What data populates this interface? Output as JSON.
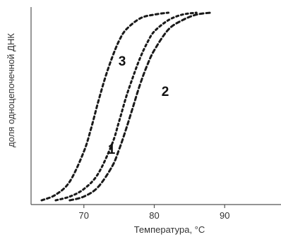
{
  "chart_data": {
    "type": "line",
    "xlabel": "Температура, °C",
    "ylabel": "доля одноцепочечной ДНК",
    "x_ticks": [
      70,
      80,
      90
    ],
    "xlim": [
      62.5,
      98
    ],
    "ylim": [
      0,
      1
    ],
    "grid": false,
    "series": [
      {
        "name": "1",
        "x": [
          66,
          68,
          70,
          72,
          74,
          75,
          76,
          77,
          78,
          79,
          80,
          82,
          84,
          86
        ],
        "y": [
          0,
          0.02,
          0.06,
          0.14,
          0.3,
          0.42,
          0.55,
          0.66,
          0.76,
          0.84,
          0.9,
          0.96,
          0.99,
          1.0
        ]
      },
      {
        "name": "2",
        "x": [
          68,
          70,
          72,
          74,
          75,
          76,
          77,
          78,
          79,
          80,
          82,
          84,
          86,
          88
        ],
        "y": [
          0,
          0.02,
          0.07,
          0.18,
          0.27,
          0.38,
          0.5,
          0.62,
          0.72,
          0.8,
          0.91,
          0.96,
          0.99,
          1.0
        ]
      },
      {
        "name": "3",
        "x": [
          64,
          66,
          68,
          70,
          71,
          72,
          73,
          74,
          75,
          76,
          78,
          80,
          82
        ],
        "y": [
          0,
          0.03,
          0.1,
          0.26,
          0.38,
          0.52,
          0.65,
          0.76,
          0.85,
          0.91,
          0.97,
          0.99,
          1.0
        ]
      }
    ],
    "curve_labels": [
      {
        "text": "1",
        "series": "1"
      },
      {
        "text": "2",
        "series": "2"
      },
      {
        "text": "3",
        "series": "3"
      }
    ]
  },
  "colors": {
    "curve": "#1a1a1a",
    "axis": "#555555",
    "text": "#333333"
  }
}
